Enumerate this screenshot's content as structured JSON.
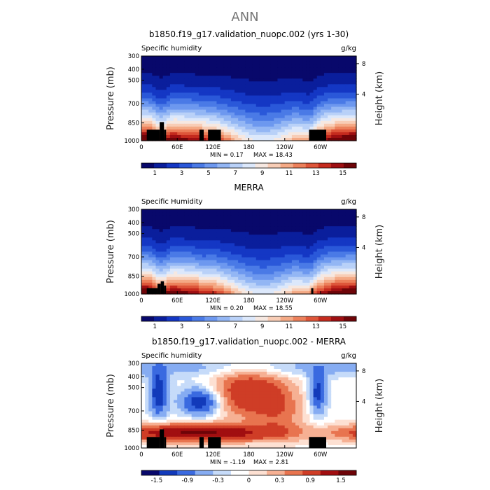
{
  "page": {
    "supertitle": "ANN"
  },
  "colors": {
    "black": "#000000",
    "seq_palette": [
      "#08086b",
      "#0a1e9c",
      "#1437c4",
      "#2a58d9",
      "#4a7ae6",
      "#6d98ef",
      "#93b6f4",
      "#b9d1f8",
      "#dce8fb",
      "#f6e8e1",
      "#f8cdb6",
      "#f4a985",
      "#ec805b",
      "#de563a",
      "#c52b1e",
      "#9e0f12",
      "#6e0408"
    ],
    "diff_palette": [
      "#08086b",
      "#123aba",
      "#3a6ae0",
      "#86acf2",
      "#c6dbf9",
      "#ffffff",
      "#fde0d2",
      "#f6b093",
      "#e8744f",
      "#cf3d26",
      "#a10e10",
      "#6e0408"
    ]
  },
  "chart_data": [
    {
      "type": "heatmap",
      "title": "b1850.f19_g17.validation_nuopc.002 (yrs 1-30)",
      "left_label": "Specific humidity",
      "right_label": "g/kg",
      "ylabel": "Pressure (mb)",
      "ylabel_right": "Height (km)",
      "x_ticks": [
        "0",
        "60E",
        "120E",
        "180",
        "120W",
        "60W"
      ],
      "y_ticks": [
        "300",
        "400",
        "500",
        "700",
        "850",
        "1000"
      ],
      "right_ticks": [
        "8",
        "4"
      ],
      "min_text": "MIN =    0.17",
      "max_text": "MAX =   18.43",
      "stats": {
        "min": 0.17,
        "max": 18.43
      },
      "colorbar_labels": [
        "1",
        "3",
        "5",
        "7",
        "9",
        "11",
        "13",
        "15"
      ],
      "topography": "model"
    },
    {
      "type": "heatmap",
      "title": "MERRA",
      "left_label": "Specific Humidity",
      "right_label": "g/kg",
      "ylabel": "Pressure (mb)",
      "ylabel_right": "Height (km)",
      "x_ticks": [
        "0",
        "60E",
        "120E",
        "180",
        "120W",
        "60W"
      ],
      "y_ticks": [
        "300",
        "400",
        "500",
        "700",
        "850",
        "1000"
      ],
      "right_ticks": [
        "8",
        "4"
      ],
      "min_text": "MIN =    0.20",
      "max_text": "MAX =   18.55",
      "stats": {
        "min": 0.2,
        "max": 18.55
      },
      "colorbar_labels": [
        "1",
        "3",
        "5",
        "7",
        "9",
        "11",
        "13",
        "15"
      ],
      "topography": "obs"
    },
    {
      "type": "heatmap",
      "title": "b1850.f19_g17.validation_nuopc.002 - MERRA",
      "left_label": "Specific humidity",
      "right_label": "g/kg",
      "ylabel": "Pressure (mb)",
      "ylabel_right": "Height (km)",
      "x_ticks": [
        "0",
        "60E",
        "120E",
        "180",
        "120W",
        "60W"
      ],
      "y_ticks": [
        "300",
        "400",
        "500",
        "700",
        "850",
        "1000"
      ],
      "right_ticks": [
        "8",
        "4"
      ],
      "min_text": "MIN =   -1.19",
      "max_text": "MAX =    2.81",
      "stats": {
        "min": -1.19,
        "max": 2.81
      },
      "colorbar_labels": [
        "-1.5",
        "-0.9",
        "-0.3",
        "0",
        "0.3",
        "0.9",
        "1.5"
      ],
      "topography": "model"
    }
  ]
}
